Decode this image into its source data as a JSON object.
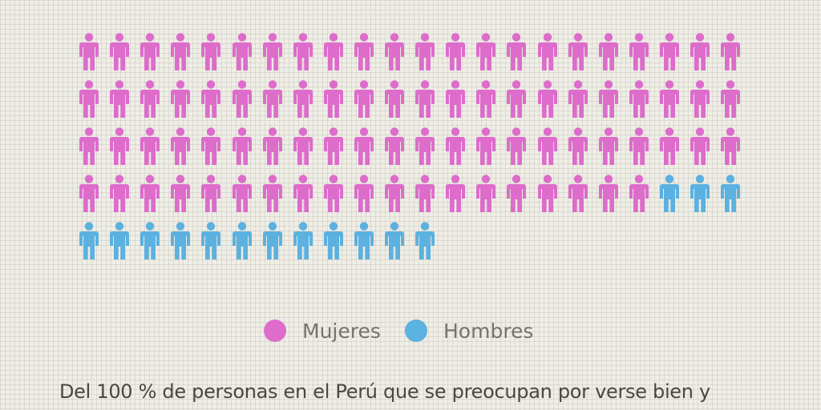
{
  "chart_data": {
    "type": "pictogram",
    "unit": "persona",
    "icons_per_row": 22,
    "series": [
      {
        "name": "Mujeres",
        "count": 85,
        "color": "#dd6ccb"
      },
      {
        "name": "Hombres",
        "count": 15,
        "color": "#5bb1e0"
      }
    ],
    "total": 100
  },
  "legend": {
    "items": [
      {
        "label": "Mujeres",
        "color": "#dd6ccb"
      },
      {
        "label": "Hombres",
        "color": "#5bb1e0"
      }
    ]
  },
  "caption": {
    "text": "Del 100 % de personas en el Perú que se preocupan por verse bien y"
  },
  "icons": {
    "person": "person-icon",
    "legend_dot": "circle-icon"
  }
}
